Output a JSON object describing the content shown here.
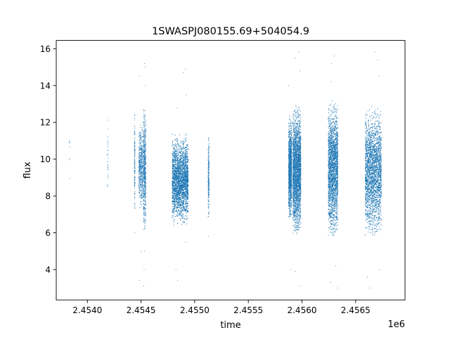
{
  "chart_data": {
    "type": "scatter",
    "title": "1SWASPJ080155.69+504054.9",
    "xlabel": "time",
    "ylabel": "flux",
    "x_offset_label": "1e6",
    "x_tick_labels": [
      "2.4540",
      "2.4545",
      "2.4550",
      "2.4555",
      "2.4560",
      "2.4565"
    ],
    "x_ticks": [
      2454000,
      2454500,
      2455000,
      2455500,
      2456000,
      2456500
    ],
    "y_ticks": [
      4,
      6,
      8,
      10,
      12,
      14,
      16
    ],
    "xlim": [
      2453710,
      2456960
    ],
    "ylim": [
      2.35,
      16.45
    ],
    "grid": false,
    "marker_color": "#1f77b4",
    "marker": "small point",
    "series": [
      {
        "values_description": "clusters",
        "clusters": [
          {
            "x_range": [
              2453832,
              2453836
            ],
            "y_range": [
              8.6,
              11.7
            ],
            "density": 8,
            "outliers": []
          },
          {
            "x_range": [
              2454186,
              2454194
            ],
            "y_range": [
              8.0,
              12.0
            ],
            "density": 30,
            "outliers": []
          },
          {
            "x_range": [
              2454438,
              2454444
            ],
            "y_range": [
              7.5,
              12.2
            ],
            "density": 140,
            "outliers": [
              6.0
            ]
          },
          {
            "x_range": [
              2454480,
              2454515
            ],
            "y_range": [
              7.5,
              11.6
            ],
            "density": 500,
            "outliers": [
              5.0,
              14.5,
              3.4
            ]
          },
          {
            "x_range": [
              2454520,
              2454545
            ],
            "y_range": [
              6.5,
              12.5
            ],
            "density": 650,
            "outliers": [
              15.2,
              15.0,
              14.0,
              4.0,
              3.1,
              5.0
            ]
          },
          {
            "x_range": [
              2454790,
              2454940
            ],
            "y_range": [
              6.8,
              11.0
            ],
            "density": 5200,
            "outliers": [
              14.9,
              14.7,
              13.5,
              12.8,
              4.0,
              3.4,
              5.5
            ]
          },
          {
            "x_range": [
              2455125,
              2455135
            ],
            "y_range": [
              7.0,
              11.0
            ],
            "density": 250,
            "outliers": [
              5.8
            ]
          },
          {
            "x_range": [
              2455875,
              2455905
            ],
            "y_range": [
              7.0,
              12.0
            ],
            "density": 1400,
            "outliers": [
              14.0,
              4.0
            ]
          },
          {
            "x_range": [
              2455915,
              2455990
            ],
            "y_range": [
              6.3,
              12.5
            ],
            "density": 3000,
            "outliers": [
              15.8,
              15.5,
              14.8,
              3.1,
              3.9
            ]
          },
          {
            "x_range": [
              2456245,
              2456335
            ],
            "y_range": [
              6.2,
              12.8
            ],
            "density": 3500,
            "outliers": [
              15.6,
              15.2,
              14.2,
              3.0,
              4.2,
              3.3
            ]
          },
          {
            "x_range": [
              2456590,
              2456740
            ],
            "y_range": [
              6.2,
              12.5
            ],
            "density": 4000,
            "outliers": [
              15.8,
              15.4,
              14.5,
              3.0,
              3.6,
              4.0
            ]
          }
        ]
      }
    ]
  }
}
